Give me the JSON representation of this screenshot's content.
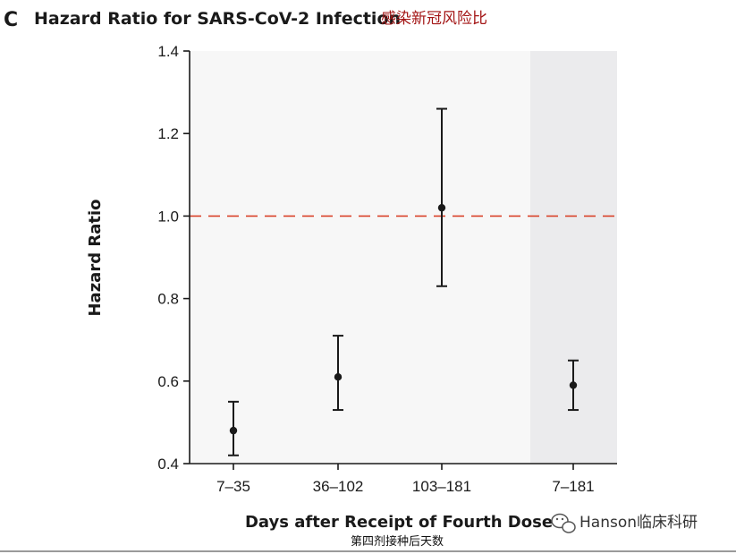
{
  "panel_label": "C",
  "watermark_icon": "wechat-icon",
  "watermark": "Hanson临床科研",
  "colors": {
    "plot_bg": "#f7f7f7",
    "highlight_bg": "#ebebed",
    "reference_line": "#d9432b",
    "axis": "#1a1a1a",
    "subtitle": "#a31515"
  },
  "chart_data": {
    "type": "scatter",
    "title": "Hazard Ratio for SARS-CoV-2 Infection",
    "subtitle": "感染新冠风险比",
    "xlabel": "Days after Receipt of Fourth Dose",
    "xlabel_secondary": "第四剂接种后天数",
    "ylabel": "Hazard Ratio",
    "ylim": [
      0.4,
      1.4
    ],
    "yticks": [
      "0.4",
      "0.6",
      "0.8",
      "1.0",
      "1.2",
      "1.4"
    ],
    "categories": [
      "7–35",
      "36–102",
      "103–181",
      "7–181"
    ],
    "points": [
      {
        "category": "7–35",
        "value": 0.48,
        "lower": 0.42,
        "upper": 0.55
      },
      {
        "category": "36–102",
        "value": 0.61,
        "lower": 0.53,
        "upper": 0.71
      },
      {
        "category": "103–181",
        "value": 1.02,
        "lower": 0.83,
        "upper": 1.26
      },
      {
        "category": "7–181",
        "value": 0.59,
        "lower": 0.53,
        "upper": 0.65
      }
    ],
    "reference_line": 1.0,
    "highlighted_category": "7–181",
    "grid": false,
    "error_bars": true
  }
}
